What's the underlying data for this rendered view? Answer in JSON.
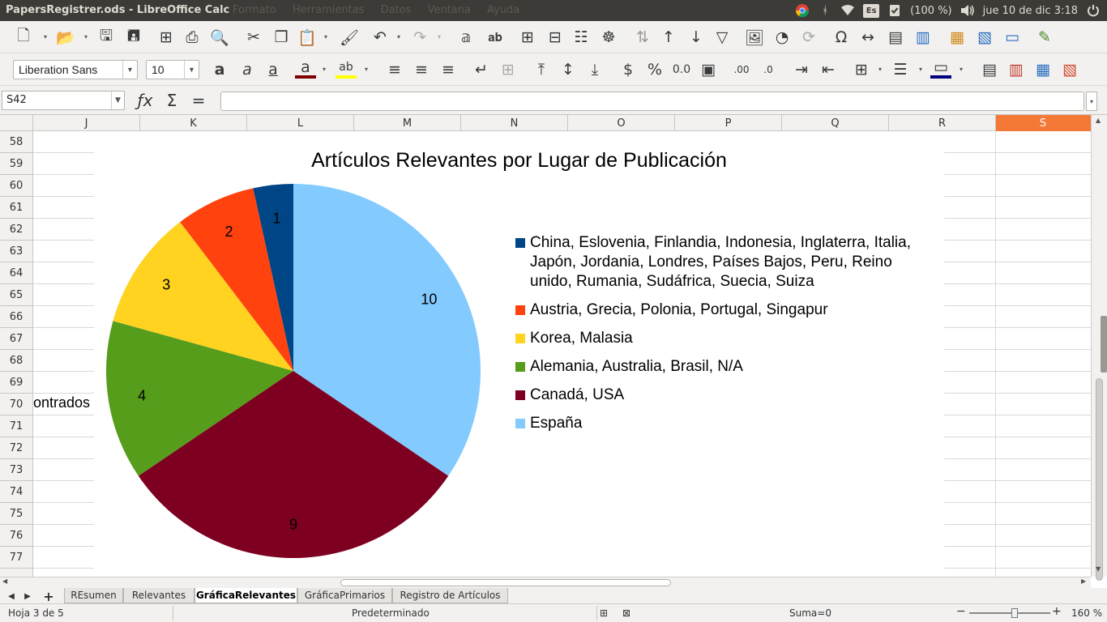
{
  "window": {
    "title": "PapersRegistrer.ods - LibreOffice Calc",
    "ghost_menu": [
      "Formato",
      "Herramientas",
      "Datos",
      "Ventana",
      "Ayuda"
    ]
  },
  "tray": {
    "keyboard_layout": "Es",
    "battery": "(100 %)",
    "datetime": "jue 10 de dic  3:18"
  },
  "format_bar": {
    "font_name": "Liberation Sans",
    "font_size": "10"
  },
  "formula_bar": {
    "cell_ref": "S42",
    "formula": ""
  },
  "columns": [
    "J",
    "K",
    "L",
    "M",
    "N",
    "O",
    "P",
    "Q",
    "R",
    "S"
  ],
  "selected_column": "S",
  "rows": [
    "58",
    "59",
    "60",
    "61",
    "62",
    "63",
    "64",
    "65",
    "66",
    "67",
    "68",
    "69",
    "70",
    "71",
    "72",
    "73",
    "74",
    "75",
    "76",
    "77"
  ],
  "partial_cell_text": "ontrados",
  "chart_data": {
    "type": "pie",
    "title": "Artículos Relevantes por Lugar de Publicación",
    "series": [
      {
        "name": "",
        "values": [
          1,
          2,
          3,
          4,
          9,
          10
        ]
      }
    ],
    "categories": [
      "China, Eslovenia, Finlandia, Indonesia, Inglaterra, Italia, Japón, Jordania, Londres, Países Bajos, Peru, Reino unido, Rumania, Sudáfrica, Suecia, Suiza",
      "Austria, Grecia, Polonia, Portugal, Singapur",
      "Korea, Malasia",
      "Alemania, Australia, Brasil, N/A",
      "Canadá, USA",
      "España"
    ],
    "colors": [
      "#004586",
      "#ff420e",
      "#ffd320",
      "#579d1c",
      "#7e0021",
      "#83caff"
    ],
    "data_labels": [
      "1",
      "2",
      "3",
      "4",
      "9",
      "10"
    ],
    "legend": "right",
    "start": "top, clockwise from España"
  },
  "sheet_tabs": [
    "REsumen",
    "Relevantes",
    "GráficaRelevantes",
    "GráficaPrimarios",
    "Registro de Artículos"
  ],
  "active_tab": "GráficaRelevantes",
  "status": {
    "sheet": "Hoja 3 de 5",
    "style": "Predeterminado",
    "sum": "Suma=0",
    "zoom": "160 %"
  }
}
